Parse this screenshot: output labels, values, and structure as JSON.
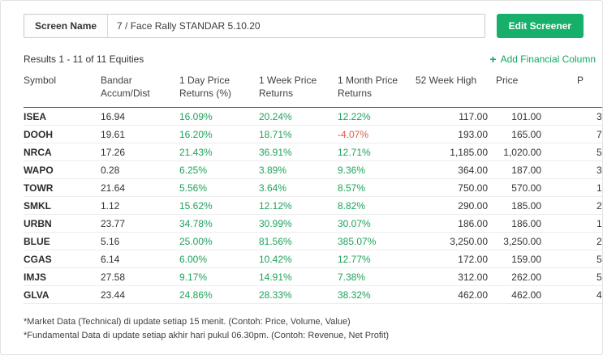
{
  "colors": {
    "accent_green": "#17b06b",
    "link_green": "#0fa85f",
    "positive": "#1fa35a",
    "negative": "#e25c4a"
  },
  "screen_name": {
    "label": "Screen Name",
    "value": "7 / Face Rally STANDAR 5.10.20"
  },
  "edit_screener_label": "Edit Screener",
  "results_text": "Results 1 - 11 of 11 Equities",
  "add_column": {
    "icon": "+",
    "label": "Add Financial Column"
  },
  "table": {
    "columns": [
      {
        "key": "symbol",
        "label": "Symbol"
      },
      {
        "key": "accum",
        "label": "Bandar Accum/Dist"
      },
      {
        "key": "day1",
        "label": "1 Day Price Returns (%)"
      },
      {
        "key": "week1",
        "label": "1 Week Price Returns"
      },
      {
        "key": "month1",
        "label": "1 Month Price Returns"
      },
      {
        "key": "high",
        "label": "52 Week High"
      },
      {
        "key": "price",
        "label": "Price"
      },
      {
        "key": "next",
        "label": "P"
      }
    ],
    "return_columns": [
      "day1",
      "week1",
      "month1"
    ],
    "rows": [
      {
        "symbol": "ISEA",
        "accum": "16.94",
        "day1": "16.09%",
        "week1": "20.24%",
        "month1": "12.22%",
        "high": "117.00",
        "price": "101.00",
        "next": "3"
      },
      {
        "symbol": "DOOH",
        "accum": "19.61",
        "day1": "16.20%",
        "week1": "18.71%",
        "month1": "-4.07%",
        "high": "193.00",
        "price": "165.00",
        "next": "7"
      },
      {
        "symbol": "NRCA",
        "accum": "17.26",
        "day1": "21.43%",
        "week1": "36.91%",
        "month1": "12.71%",
        "high": "1,185.00",
        "price": "1,020.00",
        "next": "5"
      },
      {
        "symbol": "WAPO",
        "accum": "0.28",
        "day1": "6.25%",
        "week1": "3.89%",
        "month1": "9.36%",
        "high": "364.00",
        "price": "187.00",
        "next": "3"
      },
      {
        "symbol": "TOWR",
        "accum": "21.64",
        "day1": "5.56%",
        "week1": "3.64%",
        "month1": "8.57%",
        "high": "750.00",
        "price": "570.00",
        "next": "1"
      },
      {
        "symbol": "SMKL",
        "accum": "1.12",
        "day1": "15.62%",
        "week1": "12.12%",
        "month1": "8.82%",
        "high": "290.00",
        "price": "185.00",
        "next": "2"
      },
      {
        "symbol": "URBN",
        "accum": "23.77",
        "day1": "34.78%",
        "week1": "30.99%",
        "month1": "30.07%",
        "high": "186.00",
        "price": "186.00",
        "next": "1"
      },
      {
        "symbol": "BLUE",
        "accum": "5.16",
        "day1": "25.00%",
        "week1": "81.56%",
        "month1": "385.07%",
        "high": "3,250.00",
        "price": "3,250.00",
        "next": "2"
      },
      {
        "symbol": "CGAS",
        "accum": "6.14",
        "day1": "6.00%",
        "week1": "10.42%",
        "month1": "12.77%",
        "high": "172.00",
        "price": "159.00",
        "next": "5"
      },
      {
        "symbol": "IMJS",
        "accum": "27.58",
        "day1": "9.17%",
        "week1": "14.91%",
        "month1": "7.38%",
        "high": "312.00",
        "price": "262.00",
        "next": "5"
      },
      {
        "symbol": "GLVA",
        "accum": "23.44",
        "day1": "24.86%",
        "week1": "28.33%",
        "month1": "38.32%",
        "high": "462.00",
        "price": "462.00",
        "next": "4"
      }
    ]
  },
  "footnotes": [
    "*Market Data (Technical) di update setiap 15 menit. (Contoh: Price, Volume, Value)",
    "*Fundamental Data di update setiap akhir hari pukul 06.30pm. (Contoh: Revenue, Net Profit)"
  ]
}
